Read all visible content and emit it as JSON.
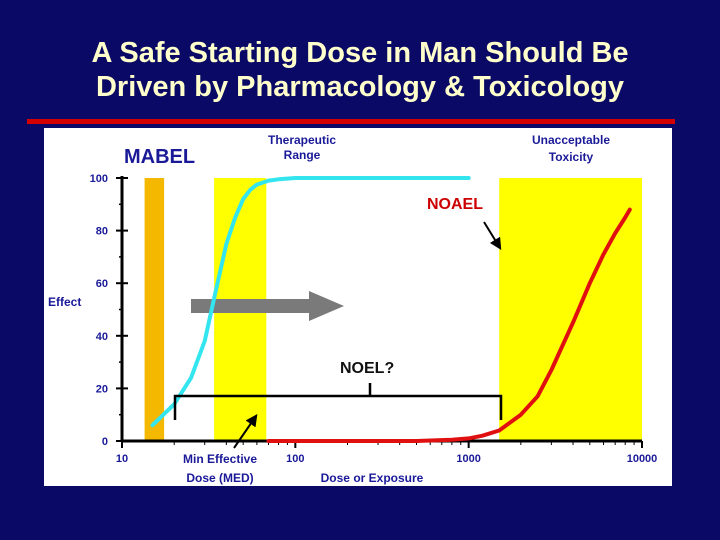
{
  "slide": {
    "title_lines": [
      "A Safe Starting Dose in Man Should Be",
      "Driven by Pharmacology & Toxicology"
    ]
  },
  "colors": {
    "background": "#0a0a66",
    "title": "#ffffcc",
    "rule": "#d40000",
    "mabel_band": "#f5b800",
    "yellow_band": "#ffff00",
    "efficacy_curve": "#33e5ee",
    "toxicity_curve": "#e01010",
    "label_blue": "#1a1a99",
    "arrow": "#7a7a7a"
  },
  "chart_data": {
    "type": "line",
    "xscale": "log",
    "xlim": [
      10,
      10000
    ],
    "ylim": [
      0,
      100
    ],
    "xlabel": "Dose or Exposure",
    "ylabel": "Effect",
    "x_ticks": [
      "10",
      "100",
      "1000",
      "10000"
    ],
    "y_ticks": [
      "0",
      "20",
      "40",
      "60",
      "80",
      "100"
    ],
    "bands": [
      {
        "label": "MABEL",
        "x_range": [
          13.5,
          17.5
        ],
        "color": "#f5b800"
      },
      {
        "label": "Therapeutic Range",
        "x_range": [
          34,
          68
        ],
        "color": "#ffff00"
      },
      {
        "label": "Unacceptable Toxicity",
        "x_range": [
          1500,
          10000
        ],
        "color": "#ffff00"
      }
    ],
    "series": [
      {
        "color": "#33e5ee",
        "x": [
          15,
          20,
          25,
          30,
          35,
          40,
          45,
          50,
          55,
          60,
          70,
          80,
          100,
          150,
          300,
          1000
        ],
        "y": [
          6,
          14,
          24,
          38,
          58,
          75,
          85,
          92,
          95.5,
          97.5,
          99,
          99.5,
          100,
          100,
          100,
          100
        ]
      },
      {
        "color": "#e01010",
        "x": [
          70,
          200,
          500,
          800,
          1000,
          1200,
          1500,
          2000,
          2500,
          3000,
          4000,
          5000,
          6000,
          7000,
          8000,
          8500
        ],
        "y": [
          0,
          0,
          0,
          0.5,
          1,
          2,
          4,
          10,
          17,
          27,
          45,
          60,
          71,
          79,
          85,
          88
        ]
      }
    ],
    "annotations": {
      "mabel": "MABEL",
      "therapeutic_range": "Therapeutic Range",
      "unacceptable_toxicity": "Unacceptable Toxicity",
      "noael": "NOAEL",
      "noel": "NOEL?",
      "med_line1": "Min Effective",
      "med_line2": "Dose (MED)"
    }
  }
}
